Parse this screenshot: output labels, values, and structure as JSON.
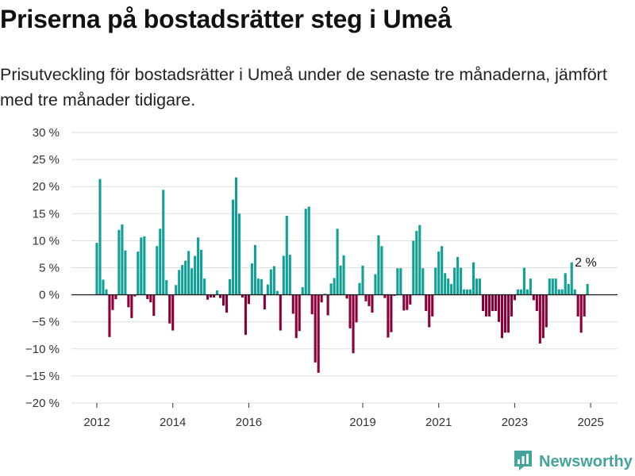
{
  "header": {
    "title": "Priserna på bostadsrätter steg i Umeå",
    "subtitle": "Prisutveckling för bostadsrätter i Umeå under de senaste tre månaderna, jämfört med tre månader tidigare."
  },
  "brand": {
    "name": "Newsworthy",
    "icon": "newsworthy-logo-icon"
  },
  "colors": {
    "positive": "#11a095",
    "negative": "#8b0038",
    "grid": "#dddddd",
    "baseline": "#222222"
  },
  "chart_data": {
    "type": "bar",
    "x_start": "2012-01",
    "x_interval": "month",
    "ylim": [
      -20,
      30
    ],
    "yticks": [
      30,
      25,
      20,
      15,
      10,
      5,
      0,
      -5,
      -10,
      -15,
      -20
    ],
    "ytick_labels": [
      "30 %",
      "25 %",
      "20 %",
      "15 %",
      "10 %",
      "5 %",
      "0 %",
      "−5 %",
      "−10 %",
      "−15 %",
      "−20 %"
    ],
    "xtick_labels": [
      "2012",
      "2014",
      "2016",
      "2019",
      "2021",
      "2023",
      "2025"
    ],
    "grid": true,
    "annotation": "2 %",
    "values": [
      9.6,
      21.4,
      2.8,
      1.0,
      -7.8,
      -2.8,
      -0.8,
      12.0,
      13.0,
      8.2,
      -2.3,
      -4.3,
      -0.3,
      8.0,
      10.6,
      10.8,
      -0.8,
      -1.4,
      -3.9,
      9.0,
      12.2,
      19.4,
      2.7,
      -5.3,
      -6.6,
      1.8,
      4.6,
      5.5,
      6.3,
      8.1,
      4.9,
      7.2,
      10.6,
      8.3,
      3.0,
      -0.9,
      -0.5,
      -0.5,
      0.8,
      -0.6,
      -2.0,
      -3.3,
      2.9,
      17.6,
      21.7,
      15.0,
      -0.5,
      -7.4,
      -1.7,
      5.8,
      9.2,
      3.0,
      2.9,
      -2.7,
      1.9,
      4.7,
      5.3,
      0.7,
      -6.6,
      7.2,
      14.6,
      7.4,
      -3.5,
      -8.0,
      -6.7,
      1.4,
      15.9,
      16.3,
      -3.6,
      -12.5,
      -14.4,
      -1.4,
      0.2,
      -3.8,
      2.1,
      3.1,
      12.2,
      5.4,
      7.3,
      -0.7,
      -6.2,
      -10.8,
      -5.1,
      2.2,
      5.4,
      -1.2,
      -2.1,
      -3.3,
      3.8,
      11.0,
      9.0,
      -0.6,
      -7.9,
      -6.9,
      -0.2,
      4.9,
      4.9,
      -2.9,
      -2.8,
      -1.8,
      10.0,
      11.8,
      12.9,
      4.9,
      -3.0,
      -6.0,
      -4.0,
      5.0,
      8.0,
      9.0,
      4.0,
      3.0,
      2.0,
      5.0,
      7.0,
      5.0,
      1.0,
      1.0,
      1.0,
      6.0,
      3.0,
      3.0,
      -3.0,
      -4.0,
      -4.0,
      -3.0,
      -3.0,
      -5.0,
      -8.0,
      -7.0,
      -7.0,
      -4.0,
      -1.0,
      1.0,
      1.0,
      5.0,
      1.0,
      3.0,
      -1.0,
      -3.0,
      -9.0,
      -8.0,
      -6.0,
      3.0,
      3.0,
      3.0,
      1.0,
      1.0,
      4.0,
      2.0,
      6.0,
      1.0,
      -4.0,
      -7.0,
      -4.0,
      2.0
    ]
  }
}
